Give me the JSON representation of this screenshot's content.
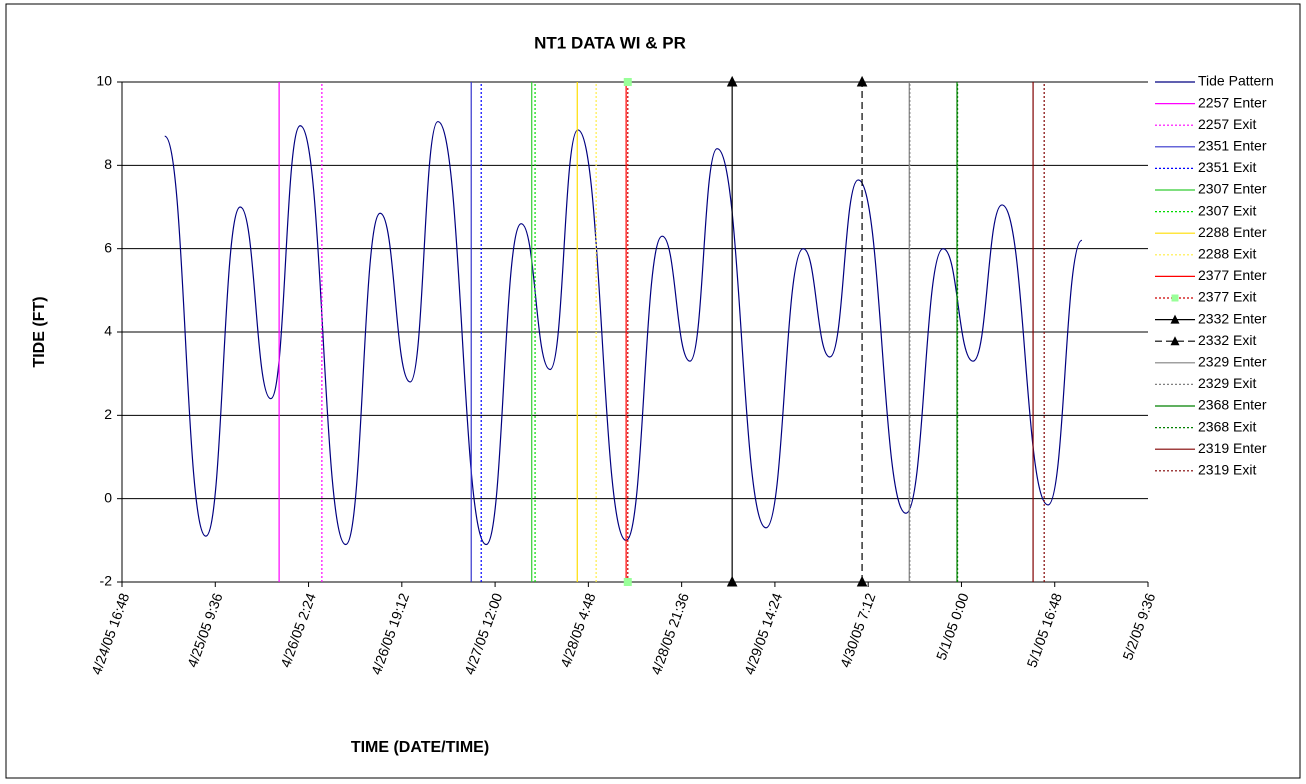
{
  "chart_data": {
    "type": "line",
    "title": "NT1 DATA WI & PR",
    "x_label": "TIME (DATE/TIME)",
    "y_label": "TIDE (FT)",
    "ylim": [
      -2,
      10
    ],
    "yticks": [
      -2,
      0,
      2,
      4,
      6,
      8,
      10
    ],
    "xlim": [
      "2005-04-24 16:48",
      "2005-05-02 09:36"
    ],
    "xticks": [
      {
        "value": "2005-04-24 16:48",
        "label": "4/24/05 16:48"
      },
      {
        "value": "2005-04-25 09:36",
        "label": "4/25/05 9:36"
      },
      {
        "value": "2005-04-26 02:24",
        "label": "4/26/05 2:24"
      },
      {
        "value": "2005-04-26 19:12",
        "label": "4/26/05 19:12"
      },
      {
        "value": "2005-04-27 12:00",
        "label": "4/27/05 12:00"
      },
      {
        "value": "2005-04-28 04:48",
        "label": "4/28/05 4:48"
      },
      {
        "value": "2005-04-28 21:36",
        "label": "4/28/05 21:36"
      },
      {
        "value": "2005-04-29 14:24",
        "label": "4/29/05 14:24"
      },
      {
        "value": "2005-04-30 07:12",
        "label": "4/30/05 7:12"
      },
      {
        "value": "2005-05-01 00:00",
        "label": "5/1/05 0:00"
      },
      {
        "value": "2005-05-01 16:48",
        "label": "5/1/05 16:48"
      },
      {
        "value": "2005-05-02 09:36",
        "label": "5/2/05 9:36"
      }
    ],
    "grid": true,
    "legend": "right",
    "series": [
      {
        "name": "Tide Pattern",
        "color": "#000080",
        "dash": "solid",
        "smooth": true,
        "x": [
          "2005-04-25 00:30",
          "2005-04-25 07:54",
          "2005-04-25 14:06",
          "2005-04-25 19:36",
          "2005-04-26 00:54",
          "2005-04-26 09:06",
          "2005-04-26 15:18",
          "2005-04-26 20:42",
          "2005-04-27 01:42",
          "2005-04-27 10:24",
          "2005-04-27 16:42",
          "2005-04-27 21:54",
          "2005-04-28 02:54",
          "2005-04-28 11:36",
          "2005-04-28 18:06",
          "2005-04-28 23:06",
          "2005-04-29 04:00",
          "2005-04-29 12:48",
          "2005-04-29 19:30",
          "2005-04-30 00:18",
          "2005-04-30 05:24",
          "2005-04-30 14:00",
          "2005-04-30 20:42",
          "2005-05-01 02:06",
          "2005-05-01 07:18",
          "2005-05-01 15:36",
          "2005-05-01 21:42"
        ],
        "values": [
          8.7,
          -0.9,
          7.0,
          2.4,
          8.95,
          -1.1,
          6.85,
          2.8,
          9.05,
          -1.1,
          6.6,
          3.1,
          8.85,
          -1.0,
          6.3,
          3.3,
          8.4,
          -0.7,
          6.0,
          3.4,
          7.65,
          -0.35,
          6.0,
          3.3,
          7.05,
          -0.15,
          6.2
        ]
      },
      {
        "name": "2257 Enter",
        "color": "#ff00ff",
        "dash": "solid",
        "x": [
          "2005-04-25 21:06",
          "2005-04-25 21:06"
        ],
        "values": [
          -2,
          10
        ]
      },
      {
        "name": "2257 Exit",
        "color": "#ff00ff",
        "dash": "dot",
        "x": [
          "2005-04-26 04:48",
          "2005-04-26 04:48"
        ],
        "values": [
          -2,
          10
        ]
      },
      {
        "name": "2351 Enter",
        "color": "#3333cc",
        "dash": "solid",
        "x": [
          "2005-04-27 07:42",
          "2005-04-27 07:42"
        ],
        "values": [
          -2,
          10
        ]
      },
      {
        "name": "2351 Exit",
        "color": "#0000ff",
        "dash": "dot",
        "x": [
          "2005-04-27 09:30",
          "2005-04-27 09:30"
        ],
        "values": [
          -2,
          10
        ]
      },
      {
        "name": "2307 Enter",
        "color": "#33cc33",
        "dash": "solid",
        "x": [
          "2005-04-27 18:36",
          "2005-04-27 18:36"
        ],
        "values": [
          -2,
          10
        ]
      },
      {
        "name": "2307 Exit",
        "color": "#00dd00",
        "dash": "dot",
        "x": [
          "2005-04-27 19:12",
          "2005-04-27 19:12"
        ],
        "values": [
          -2,
          10
        ]
      },
      {
        "name": "2288 Enter",
        "color": "#ffdd00",
        "dash": "solid",
        "x": [
          "2005-04-28 02:48",
          "2005-04-28 02:48"
        ],
        "values": [
          -2,
          10
        ]
      },
      {
        "name": "2288 Exit",
        "color": "#ffee44",
        "dash": "dot",
        "x": [
          "2005-04-28 06:12",
          "2005-04-28 06:12"
        ],
        "values": [
          -2,
          10
        ]
      },
      {
        "name": "2377 Enter",
        "color": "#ff0000",
        "dash": "solid",
        "x": [
          "2005-04-28 11:36",
          "2005-04-28 11:36"
        ],
        "values": [
          -2,
          10
        ]
      },
      {
        "name": "2377 Exit",
        "color": "#cc0000",
        "dash": "dot",
        "marker": "square",
        "marker_color": "#99ff99",
        "x": [
          "2005-04-28 11:54",
          "2005-04-28 11:54"
        ],
        "values": [
          -2,
          10
        ]
      },
      {
        "name": "2332 Enter",
        "color": "#000000",
        "dash": "solid",
        "marker": "triangle",
        "marker_color": "#000000",
        "x": [
          "2005-04-29 06:42",
          "2005-04-29 06:42"
        ],
        "values": [
          -2,
          10
        ]
      },
      {
        "name": "2332 Exit",
        "color": "#000000",
        "dash": "dash",
        "marker": "triangle",
        "marker_color": "#000000",
        "x": [
          "2005-04-30 06:06",
          "2005-04-30 06:06"
        ],
        "values": [
          -2,
          10
        ]
      },
      {
        "name": "2329 Enter",
        "color": "#808080",
        "dash": "solid",
        "x": [
          "2005-04-30 14:36",
          "2005-04-30 14:36"
        ],
        "values": [
          -2,
          10
        ]
      },
      {
        "name": "2329 Exit",
        "color": "#808080",
        "dash": "dot",
        "x": [
          "2005-04-30 14:42",
          "2005-04-30 14:42"
        ],
        "values": [
          -2,
          10
        ]
      },
      {
        "name": "2368 Enter",
        "color": "#008000",
        "dash": "solid",
        "x": [
          "2005-04-30 23:12",
          "2005-04-30 23:12"
        ],
        "values": [
          -2,
          10
        ]
      },
      {
        "name": "2368 Exit",
        "color": "#008000",
        "dash": "dot",
        "x": [
          "2005-04-30 23:18",
          "2005-04-30 23:18"
        ],
        "values": [
          -2,
          10
        ]
      },
      {
        "name": "2319 Enter",
        "color": "#800000",
        "dash": "solid",
        "x": [
          "2005-05-01 12:54",
          "2005-05-01 12:54"
        ],
        "values": [
          -2,
          10
        ]
      },
      {
        "name": "2319 Exit",
        "color": "#800000",
        "dash": "dot",
        "x": [
          "2005-05-01 14:54",
          "2005-05-01 14:54"
        ],
        "values": [
          -2,
          10
        ]
      }
    ]
  }
}
